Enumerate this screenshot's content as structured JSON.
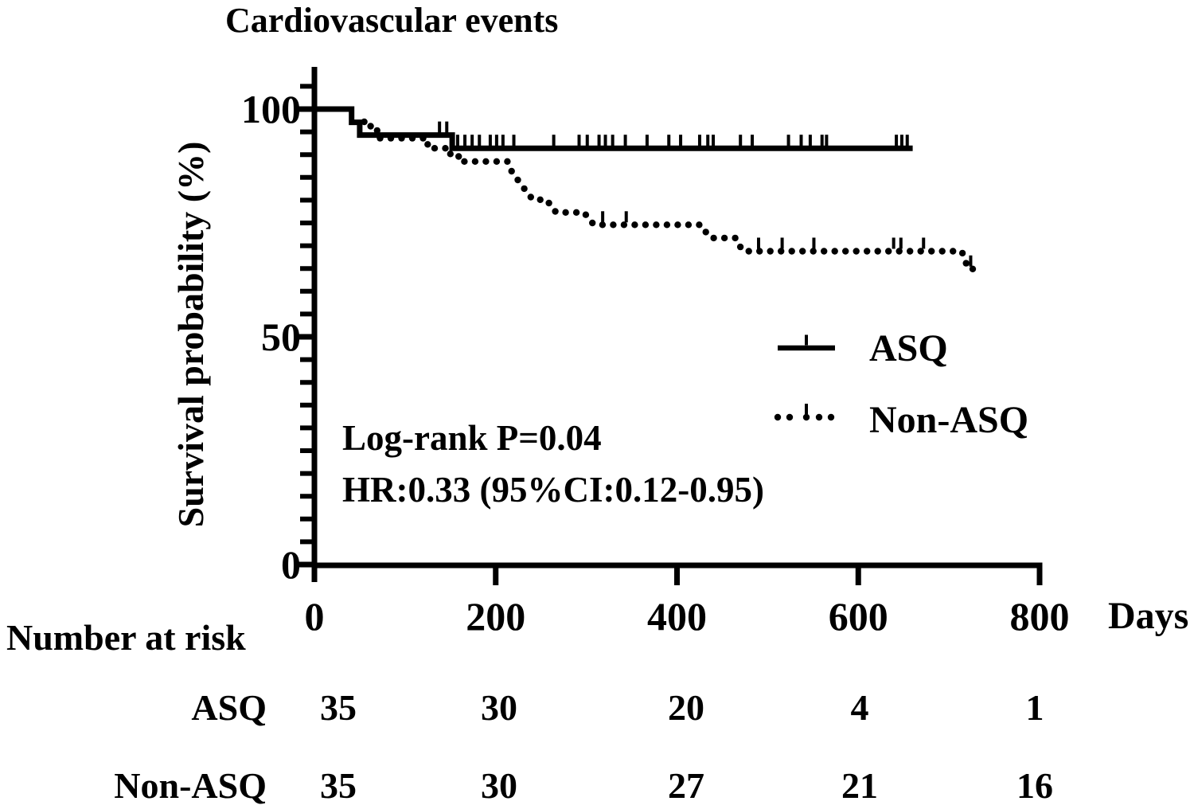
{
  "chart_data": {
    "type": "line",
    "subtype": "kaplan-meier-survival",
    "title": "Cardiovascular events",
    "xlabel": "Days",
    "ylabel": "Survival probability (%)",
    "xlim": [
      0,
      800
    ],
    "ylim": [
      0,
      110
    ],
    "x_ticks": [
      0,
      200,
      400,
      600,
      800
    ],
    "y_ticks_major": [
      0,
      50,
      100
    ],
    "y_minor_tick_step": 5,
    "grid": "off",
    "legend_position": "right-middle",
    "line_color": "#000000",
    "annotation": [
      "Log-rank P=0.04",
      "HR:0.33 (95%CI:0.12-0.95)"
    ],
    "legend": [
      {
        "name": "ASQ",
        "style": "solid"
      },
      {
        "name": "Non-ASQ",
        "style": "dotted"
      }
    ],
    "series": [
      {
        "name": "ASQ",
        "style": "solid",
        "steps_day_pct": [
          [
            0,
            100
          ],
          [
            41,
            100
          ],
          [
            41,
            97.1
          ],
          [
            50,
            97.1
          ],
          [
            50,
            94.3
          ],
          [
            152,
            94.3
          ],
          [
            152,
            91.4
          ],
          [
            660,
            91.4
          ]
        ],
        "censor_days": [
          138,
          146,
          158,
          166,
          174,
          182,
          194,
          201,
          208,
          220,
          264,
          292,
          301,
          314,
          321,
          329,
          343,
          367,
          391,
          404,
          425,
          434,
          440,
          470,
          483,
          523,
          537,
          547,
          560,
          565,
          642,
          648,
          654
        ]
      },
      {
        "name": "Non-ASQ",
        "style": "dotted",
        "steps_day_pct": [
          [
            55,
            97.2
          ],
          [
            62,
            97.2
          ],
          [
            62,
            95.3
          ],
          [
            72,
            95.3
          ],
          [
            72,
            93.6
          ],
          [
            125,
            93.6
          ],
          [
            125,
            91.4
          ],
          [
            150,
            91.4
          ],
          [
            150,
            89.6
          ],
          [
            161,
            89.6
          ],
          [
            161,
            88.5
          ],
          [
            213,
            88.5
          ],
          [
            217,
            86.5
          ],
          [
            223,
            84.8
          ],
          [
            229,
            83.2
          ],
          [
            235,
            81.6
          ],
          [
            241,
            80.1
          ],
          [
            257,
            80.1
          ],
          [
            261,
            78.4
          ],
          [
            267,
            77.3
          ],
          [
            298,
            77.3
          ],
          [
            302,
            75.8
          ],
          [
            309,
            74.6
          ],
          [
            427,
            74.6
          ],
          [
            431,
            73.2
          ],
          [
            437,
            71.7
          ],
          [
            465,
            71.7
          ],
          [
            469,
            70
          ],
          [
            473,
            68.8
          ],
          [
            714,
            68.8
          ],
          [
            717,
            67.3
          ],
          [
            721,
            64.9
          ],
          [
            731,
            64.9
          ]
        ],
        "censor_days": [
          318,
          344,
          490,
          516,
          551,
          639,
          647,
          672,
          724
        ]
      }
    ],
    "risk_table": {
      "heading": "Number at risk",
      "days": [
        0,
        200,
        400,
        600,
        800
      ],
      "rows": [
        {
          "label": "ASQ",
          "values": [
            35,
            30,
            20,
            4,
            1
          ]
        },
        {
          "label": "Non-ASQ",
          "values": [
            35,
            30,
            27,
            21,
            16
          ]
        }
      ]
    }
  }
}
